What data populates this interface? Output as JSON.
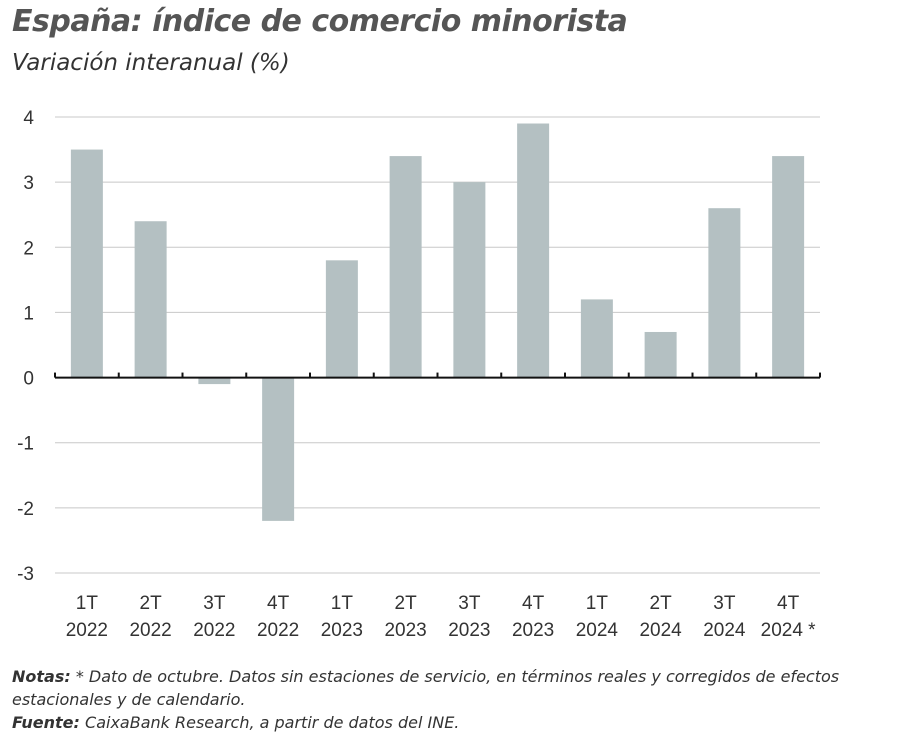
{
  "title": "España: índice de comercio minorista",
  "subtitle": "Variación interanual (%)",
  "notes": {
    "label": "Notas:",
    "text": " * Dato de octubre. Datos sin estaciones de servicio, en términos reales y corregidos de efectos estacionales y de calendario."
  },
  "source": {
    "label": "Fuente:",
    "text": " CaixaBank Research, a partir de datos del INE."
  },
  "chart_data": {
    "type": "bar",
    "categories": [
      [
        "1T",
        "2022"
      ],
      [
        "2T",
        "2022"
      ],
      [
        "3T",
        "2022"
      ],
      [
        "4T",
        "2022"
      ],
      [
        "1T",
        "2023"
      ],
      [
        "2T",
        "2023"
      ],
      [
        "3T",
        "2023"
      ],
      [
        "4T",
        "2023"
      ],
      [
        "1T",
        "2024"
      ],
      [
        "2T",
        "2024"
      ],
      [
        "3T",
        "2024"
      ],
      [
        "4T",
        "2024 *"
      ]
    ],
    "values": [
      3.5,
      2.4,
      -0.1,
      -2.2,
      1.8,
      3.4,
      3.0,
      3.9,
      1.2,
      0.7,
      2.6,
      3.4
    ],
    "ylim": [
      -3,
      4
    ],
    "yticks": [
      4,
      3,
      2,
      1,
      0,
      -1,
      -2,
      -3
    ],
    "grid": true,
    "bar_color": "#b4c0c2"
  }
}
